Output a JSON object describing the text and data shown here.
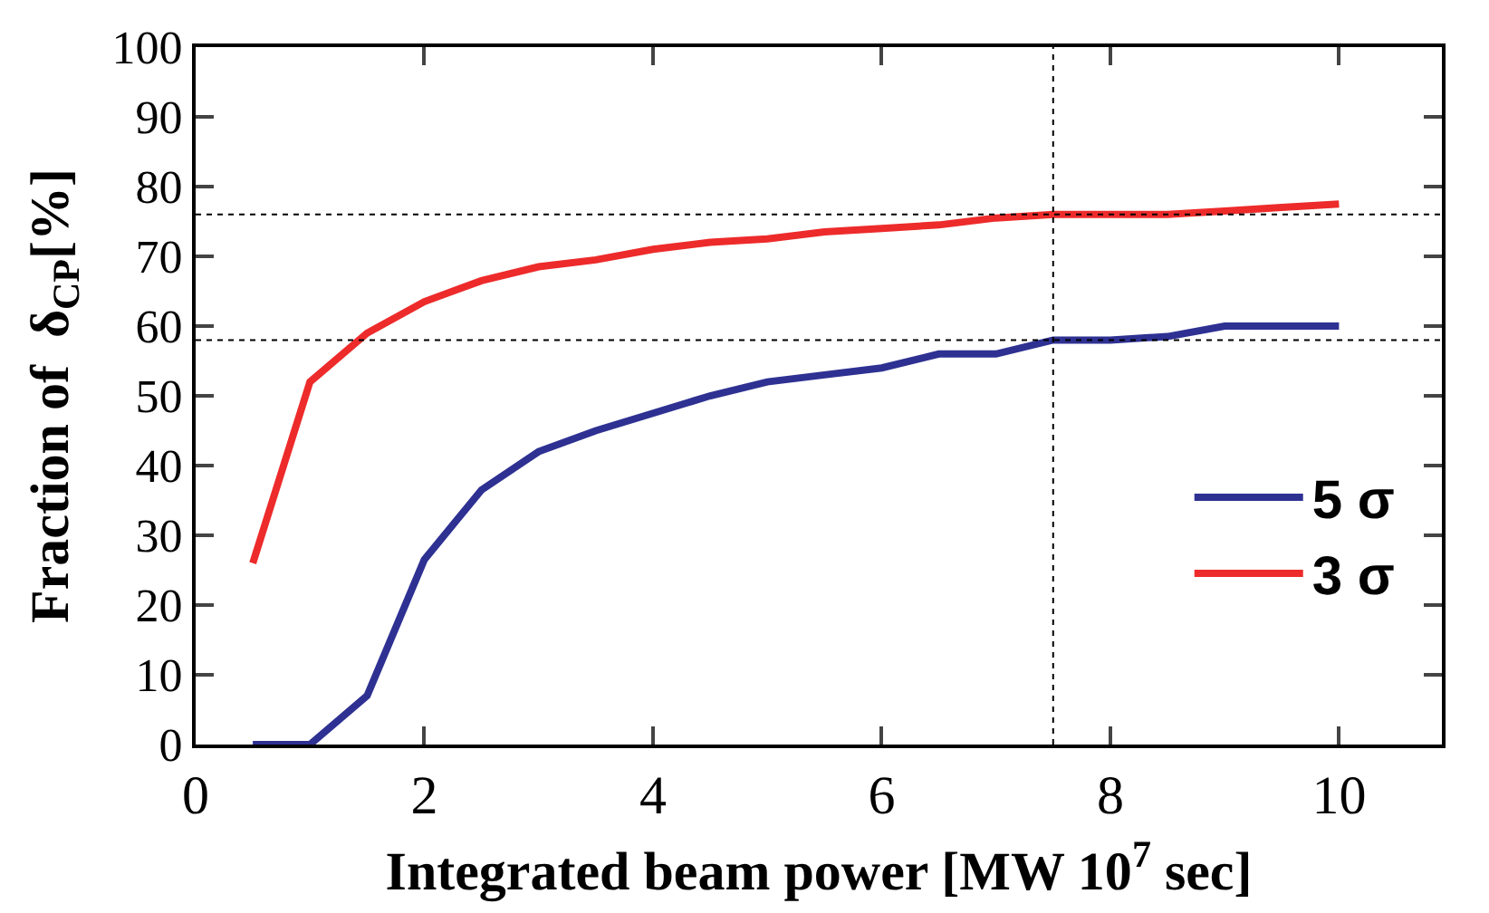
{
  "chart_data": {
    "type": "line",
    "xlabel": "Integrated beam power [MW 10$^{7}$ sec]",
    "ylabel": "Fraction of  δ$_{CP}$[%]",
    "x": [
      0.5,
      1,
      1.5,
      2,
      2.5,
      3,
      3.5,
      4,
      4.5,
      5,
      5.5,
      6,
      6.5,
      7,
      7.5,
      8,
      8.5,
      9,
      9.5,
      10
    ],
    "series": [
      {
        "name": "5 σ",
        "color": "#2e3192",
        "values": [
          0,
          0,
          7,
          26.5,
          36.5,
          42,
          45,
          47.5,
          50,
          52,
          53,
          54,
          56,
          56,
          58,
          58,
          58.5,
          60,
          60,
          60
        ]
      },
      {
        "name": "3 σ",
        "color": "#ed2b2b",
        "values": [
          26,
          52,
          59,
          63.5,
          66.5,
          68.5,
          69.5,
          71,
          72,
          72.5,
          73.5,
          74,
          74.5,
          75.5,
          76,
          76,
          76,
          76.5,
          77,
          77.5
        ]
      }
    ],
    "xlim": [
      0,
      10.9
    ],
    "xticks": [
      0,
      2,
      4,
      6,
      8,
      10
    ],
    "ylim": [
      0,
      100
    ],
    "yticks": [
      0,
      10,
      20,
      30,
      40,
      50,
      60,
      70,
      80,
      90,
      100
    ],
    "ref_lines": [
      {
        "axis": "y",
        "value": 76,
        "color": "#000000",
        "line_style": "dotted"
      },
      {
        "axis": "y",
        "value": 58,
        "color": "#000000",
        "line_style": "dotted"
      },
      {
        "axis": "x",
        "value": 7.5,
        "color": "#000000",
        "line_style": "dotted"
      }
    ],
    "legend": "right",
    "marker": "none",
    "line_style": "solid"
  }
}
